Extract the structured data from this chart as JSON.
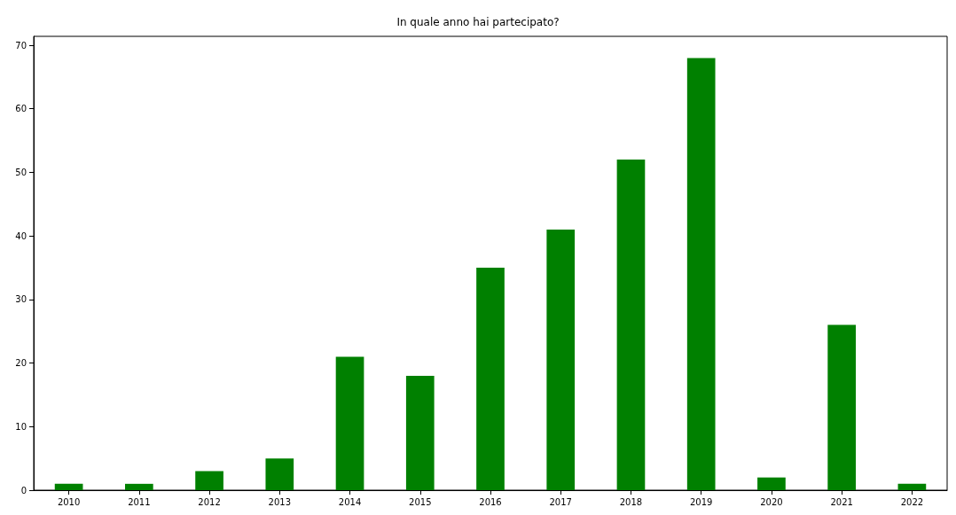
{
  "chart_data": {
    "type": "bar",
    "title": "In quale anno hai partecipato?",
    "categories": [
      "2010",
      "2011",
      "2012",
      "2013",
      "2014",
      "2015",
      "2016",
      "2017",
      "2018",
      "2019",
      "2020",
      "2021",
      "2022"
    ],
    "values": [
      1,
      1,
      3,
      5,
      21,
      18,
      35,
      41,
      52,
      68,
      2,
      26,
      1
    ],
    "color": "#008000",
    "ylim": [
      0,
      71.4
    ],
    "yticks": [
      0,
      10,
      20,
      30,
      40,
      50,
      60,
      70
    ],
    "grid": false
  }
}
